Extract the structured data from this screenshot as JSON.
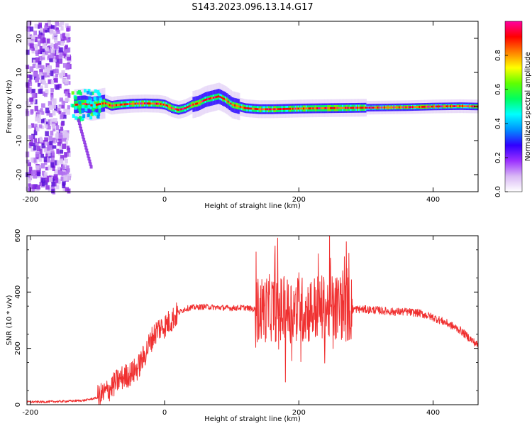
{
  "figure": {
    "title": "S143.2023.096.13.14.G17"
  },
  "chart_data": [
    {
      "type": "heatmap",
      "title": "",
      "xlabel": "Height of straight line (km)",
      "ylabel": "Frequency (Hz)",
      "xlim": [
        -205,
        467
      ],
      "ylim": [
        -25,
        25
      ],
      "xticks": [
        -200,
        0,
        200,
        400
      ],
      "yticks": [
        -20,
        -10,
        0,
        10,
        20
      ],
      "colorbar": {
        "label": "Normalized spectral amplitude",
        "range": [
          0,
          1
        ],
        "ticks": [
          0.0,
          0.2,
          0.4,
          0.6,
          0.8
        ],
        "tick_labels": [
          "0.0",
          "0.2",
          "0.4",
          "0.6",
          "0.8"
        ],
        "colors": [
          "#ffffff",
          "#d9b8f5",
          "#9b30ff",
          "#3000ff",
          "#0090ff",
          "#00ffff",
          "#00ff60",
          "#60ff00",
          "#ffff00",
          "#ff8000",
          "#ff0000",
          "#ff00a0"
        ]
      },
      "ridge": {
        "x": [
          -135,
          -120,
          -110,
          -100,
          -90,
          -80,
          -70,
          -50,
          -30,
          -10,
          0,
          10,
          20,
          30,
          40,
          50,
          60,
          70,
          80,
          90,
          100,
          110,
          120,
          140,
          160,
          180,
          200,
          240,
          280,
          320,
          360,
          400,
          440,
          467
        ],
        "y": [
          0.5,
          0.8,
          0.3,
          0.6,
          1.0,
          0.2,
          0.5,
          0.8,
          0.9,
          0.8,
          0.5,
          -0.5,
          -1.0,
          -0.5,
          0.5,
          1.0,
          2.0,
          2.5,
          3.0,
          2.0,
          0.5,
          0.0,
          -0.5,
          -0.8,
          -0.8,
          -0.7,
          -0.6,
          -0.5,
          -0.4,
          -0.3,
          -0.2,
          0.0,
          0.1,
          0.0
        ]
      }
    },
    {
      "type": "line",
      "title": "",
      "xlabel": "Height of straight line (km)",
      "ylabel": "SNR (10 * v/v)",
      "xlim": [
        -205,
        467
      ],
      "ylim": [
        0,
        600
      ],
      "xticks": [
        -200,
        0,
        200,
        400
      ],
      "yticks": [
        0,
        200,
        400,
        600
      ],
      "line_color": "#f03030",
      "series": [
        {
          "x": [
            -205,
            -180,
            -150,
            -120,
            -100,
            -90,
            -80,
            -70,
            -60,
            -50,
            -40,
            -30,
            -20,
            -10,
            0,
            10,
            20,
            30,
            40,
            60,
            80,
            100,
            120,
            130,
            140,
            150,
            160,
            170,
            180,
            190,
            200,
            210,
            220,
            230,
            240,
            250,
            260,
            270,
            280,
            300,
            320,
            340,
            360,
            380,
            400,
            420,
            440,
            467
          ],
          "y": [
            10,
            10,
            12,
            15,
            25,
            40,
            60,
            85,
            100,
            110,
            130,
            175,
            230,
            270,
            280,
            300,
            325,
            340,
            345,
            348,
            345,
            343,
            345,
            340,
            335,
            340,
            345,
            340,
            335,
            340,
            340,
            335,
            340,
            345,
            340,
            345,
            345,
            340,
            340,
            338,
            335,
            330,
            330,
            325,
            310,
            290,
            265,
            210
          ]
        }
      ]
    }
  ]
}
